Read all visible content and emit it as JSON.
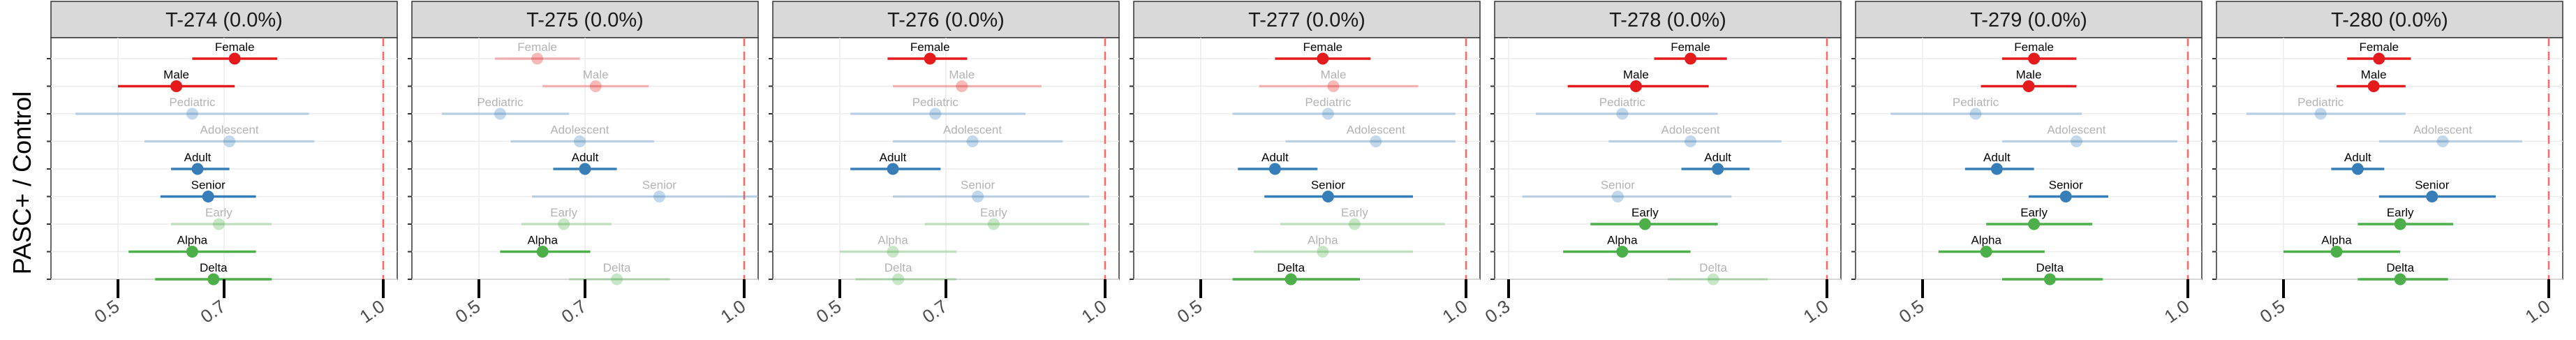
{
  "chart_data": {
    "type": "forest",
    "ylabel": "PASC+ / Control",
    "groups": [
      "Female",
      "Male",
      "Pediatric",
      "Adolescent",
      "Adult",
      "Senior",
      "Early",
      "Alpha",
      "Delta"
    ],
    "group_colors": {
      "Female": "#e41a1c",
      "Male": "#e41a1c",
      "Pediatric": "#377eb8",
      "Adolescent": "#377eb8",
      "Adult": "#377eb8",
      "Senior": "#377eb8",
      "Early": "#4daf4a",
      "Alpha": "#4daf4a",
      "Delta": "#4daf4a"
    },
    "faded_opacity": 0.3,
    "reference_line": 1.0,
    "reference_line_color": "#ff6666",
    "grid": true,
    "panels": [
      {
        "title": "T-274 (0.0%)",
        "xlim": [
          0.4,
          1.0
        ],
        "ticks": [
          0.5,
          0.7,
          1.0
        ],
        "tick_labels": [
          "0.5",
          "0.7",
          "1.0"
        ],
        "points": [
          {
            "label": "Female",
            "est": 0.72,
            "lo": 0.64,
            "hi": 0.8,
            "faded": false
          },
          {
            "label": "Male",
            "est": 0.61,
            "lo": 0.5,
            "hi": 0.72,
            "faded": false
          },
          {
            "label": "Pediatric",
            "est": 0.64,
            "lo": 0.42,
            "hi": 0.86,
            "faded": true
          },
          {
            "label": "Adolescent",
            "est": 0.71,
            "lo": 0.55,
            "hi": 0.87,
            "faded": true
          },
          {
            "label": "Adult",
            "est": 0.65,
            "lo": 0.6,
            "hi": 0.71,
            "faded": false
          },
          {
            "label": "Senior",
            "est": 0.67,
            "lo": 0.58,
            "hi": 0.76,
            "faded": false
          },
          {
            "label": "Early",
            "est": 0.69,
            "lo": 0.6,
            "hi": 0.79,
            "faded": true
          },
          {
            "label": "Alpha",
            "est": 0.64,
            "lo": 0.52,
            "hi": 0.76,
            "faded": false
          },
          {
            "label": "Delta",
            "est": 0.68,
            "lo": 0.57,
            "hi": 0.79,
            "faded": false
          }
        ]
      },
      {
        "title": "T-275 (0.0%)",
        "xlim": [
          0.4,
          1.0
        ],
        "ticks": [
          0.5,
          0.7,
          1.0
        ],
        "tick_labels": [
          "0.5",
          "0.7",
          "1.0"
        ],
        "points": [
          {
            "label": "Female",
            "est": 0.61,
            "lo": 0.53,
            "hi": 0.69,
            "faded": true
          },
          {
            "label": "Male",
            "est": 0.72,
            "lo": 0.62,
            "hi": 0.82,
            "faded": true
          },
          {
            "label": "Pediatric",
            "est": 0.54,
            "lo": 0.43,
            "hi": 0.67,
            "faded": true
          },
          {
            "label": "Adolescent",
            "est": 0.69,
            "lo": 0.56,
            "hi": 0.83,
            "faded": true
          },
          {
            "label": "Adult",
            "est": 0.7,
            "lo": 0.64,
            "hi": 0.76,
            "faded": false
          },
          {
            "label": "Senior",
            "est": 0.84,
            "lo": 0.6,
            "hi": 1.1,
            "faded": true
          },
          {
            "label": "Early",
            "est": 0.66,
            "lo": 0.58,
            "hi": 0.75,
            "faded": true
          },
          {
            "label": "Alpha",
            "est": 0.62,
            "lo": 0.54,
            "hi": 0.71,
            "faded": false
          },
          {
            "label": "Delta",
            "est": 0.76,
            "lo": 0.67,
            "hi": 0.86,
            "faded": true
          }
        ]
      },
      {
        "title": "T-276 (0.0%)",
        "xlim": [
          0.4,
          1.0
        ],
        "ticks": [
          0.5,
          0.7,
          1.0
        ],
        "tick_labels": [
          "0.5",
          "0.7",
          "1.0"
        ],
        "points": [
          {
            "label": "Female",
            "est": 0.67,
            "lo": 0.59,
            "hi": 0.74,
            "faded": false
          },
          {
            "label": "Male",
            "est": 0.73,
            "lo": 0.6,
            "hi": 0.88,
            "faded": true
          },
          {
            "label": "Pediatric",
            "est": 0.68,
            "lo": 0.52,
            "hi": 0.85,
            "faded": true
          },
          {
            "label": "Adolescent",
            "est": 0.75,
            "lo": 0.6,
            "hi": 0.92,
            "faded": true
          },
          {
            "label": "Adult",
            "est": 0.6,
            "lo": 0.52,
            "hi": 0.69,
            "faded": false
          },
          {
            "label": "Senior",
            "est": 0.76,
            "lo": 0.6,
            "hi": 0.97,
            "faded": true
          },
          {
            "label": "Early",
            "est": 0.79,
            "lo": 0.66,
            "hi": 0.97,
            "faded": true
          },
          {
            "label": "Alpha",
            "est": 0.6,
            "lo": 0.5,
            "hi": 0.72,
            "faded": true
          },
          {
            "label": "Delta",
            "est": 0.61,
            "lo": 0.53,
            "hi": 0.72,
            "faded": true
          }
        ]
      },
      {
        "title": "T-277 (0.0%)",
        "xlim": [
          0.4,
          1.0
        ],
        "ticks": [
          0.5,
          1.0
        ],
        "tick_labels": [
          "0.5",
          "1.0"
        ],
        "points": [
          {
            "label": "Female",
            "est": 0.73,
            "lo": 0.64,
            "hi": 0.82,
            "faded": false
          },
          {
            "label": "Male",
            "est": 0.75,
            "lo": 0.61,
            "hi": 0.91,
            "faded": true
          },
          {
            "label": "Pediatric",
            "est": 0.74,
            "lo": 0.56,
            "hi": 0.98,
            "faded": true
          },
          {
            "label": "Adolescent",
            "est": 0.83,
            "lo": 0.66,
            "hi": 0.98,
            "faded": true
          },
          {
            "label": "Adult",
            "est": 0.64,
            "lo": 0.57,
            "hi": 0.72,
            "faded": false
          },
          {
            "label": "Senior",
            "est": 0.74,
            "lo": 0.62,
            "hi": 0.9,
            "faded": false
          },
          {
            "label": "Early",
            "est": 0.79,
            "lo": 0.65,
            "hi": 0.96,
            "faded": true
          },
          {
            "label": "Alpha",
            "est": 0.73,
            "lo": 0.6,
            "hi": 0.9,
            "faded": true
          },
          {
            "label": "Delta",
            "est": 0.67,
            "lo": 0.56,
            "hi": 0.8,
            "faded": false
          }
        ]
      },
      {
        "title": "T-278 (0.0%)",
        "xlim": [
          0.3,
          1.0
        ],
        "ticks": [
          0.3,
          1.0
        ],
        "tick_labels": [
          "0.3",
          "1.0"
        ],
        "points": [
          {
            "label": "Female",
            "est": 0.7,
            "lo": 0.62,
            "hi": 0.78,
            "faded": false
          },
          {
            "label": "Male",
            "est": 0.58,
            "lo": 0.43,
            "hi": 0.74,
            "faded": false
          },
          {
            "label": "Pediatric",
            "est": 0.55,
            "lo": 0.36,
            "hi": 0.76,
            "faded": true
          },
          {
            "label": "Adolescent",
            "est": 0.7,
            "lo": 0.52,
            "hi": 0.9,
            "faded": true
          },
          {
            "label": "Adult",
            "est": 0.76,
            "lo": 0.68,
            "hi": 0.83,
            "faded": false
          },
          {
            "label": "Senior",
            "est": 0.54,
            "lo": 0.33,
            "hi": 0.79,
            "faded": true
          },
          {
            "label": "Early",
            "est": 0.6,
            "lo": 0.48,
            "hi": 0.76,
            "faded": false
          },
          {
            "label": "Alpha",
            "est": 0.55,
            "lo": 0.42,
            "hi": 0.7,
            "faded": false
          },
          {
            "label": "Delta",
            "est": 0.75,
            "lo": 0.65,
            "hi": 0.87,
            "faded": true
          }
        ]
      },
      {
        "title": "T-279 (0.0%)",
        "xlim": [
          0.4,
          1.0
        ],
        "ticks": [
          0.5,
          1.0
        ],
        "tick_labels": [
          "0.5",
          "1.0"
        ],
        "points": [
          {
            "label": "Female",
            "est": 0.71,
            "lo": 0.65,
            "hi": 0.79,
            "faded": false
          },
          {
            "label": "Male",
            "est": 0.7,
            "lo": 0.61,
            "hi": 0.79,
            "faded": false
          },
          {
            "label": "Pediatric",
            "est": 0.6,
            "lo": 0.44,
            "hi": 0.8,
            "faded": true
          },
          {
            "label": "Adolescent",
            "est": 0.79,
            "lo": 0.65,
            "hi": 0.98,
            "faded": true
          },
          {
            "label": "Adult",
            "est": 0.64,
            "lo": 0.58,
            "hi": 0.71,
            "faded": false
          },
          {
            "label": "Senior",
            "est": 0.77,
            "lo": 0.7,
            "hi": 0.85,
            "faded": false
          },
          {
            "label": "Early",
            "est": 0.71,
            "lo": 0.62,
            "hi": 0.82,
            "faded": false
          },
          {
            "label": "Alpha",
            "est": 0.62,
            "lo": 0.53,
            "hi": 0.73,
            "faded": false
          },
          {
            "label": "Delta",
            "est": 0.74,
            "lo": 0.65,
            "hi": 0.84,
            "faded": false
          }
        ]
      },
      {
        "title": "T-280 (0.0%)",
        "xlim": [
          0.4,
          1.0
        ],
        "ticks": [
          0.5,
          1.0
        ],
        "tick_labels": [
          "0.5",
          "1.0"
        ],
        "points": [
          {
            "label": "Female",
            "est": 0.68,
            "lo": 0.62,
            "hi": 0.74,
            "faded": false
          },
          {
            "label": "Male",
            "est": 0.67,
            "lo": 0.6,
            "hi": 0.73,
            "faded": false
          },
          {
            "label": "Pediatric",
            "est": 0.57,
            "lo": 0.43,
            "hi": 0.73,
            "faded": true
          },
          {
            "label": "Adolescent",
            "est": 0.8,
            "lo": 0.68,
            "hi": 0.95,
            "faded": true
          },
          {
            "label": "Adult",
            "est": 0.64,
            "lo": 0.59,
            "hi": 0.69,
            "faded": false
          },
          {
            "label": "Senior",
            "est": 0.78,
            "lo": 0.68,
            "hi": 0.9,
            "faded": false
          },
          {
            "label": "Early",
            "est": 0.72,
            "lo": 0.64,
            "hi": 0.82,
            "faded": false
          },
          {
            "label": "Alpha",
            "est": 0.6,
            "lo": 0.5,
            "hi": 0.72,
            "faded": false
          },
          {
            "label": "Delta",
            "est": 0.72,
            "lo": 0.64,
            "hi": 0.81,
            "faded": false
          }
        ]
      }
    ]
  }
}
